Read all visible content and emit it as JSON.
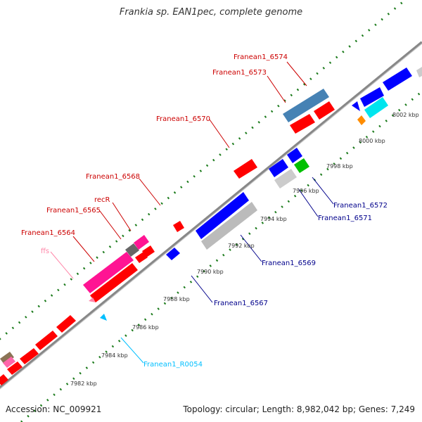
{
  "title": "Frankia sp. EAN1pec, complete genome",
  "footer": {
    "accession": "Accession: NC_009921",
    "topology": "Topology: circular; Length: 8,982,042 bp; Genes: 7,249"
  },
  "tick_labels": [
    "7982 kbp",
    "7984 kbp",
    "7986 kbp",
    "7988 kbp",
    "7990 kbp",
    "7992 kbp",
    "7994 kbp",
    "7996 kbp",
    "7998 kbp",
    "8000 kbp",
    "8002 kbp"
  ],
  "gene_labels_top": [
    "Franean1_6574",
    "Franean1_6573",
    "Franean1_6570",
    "Franean1_6568",
    "recR",
    "Franean1_6565",
    "Franean1_6564",
    "ffs"
  ],
  "gene_labels_bottom": [
    "Franean1_6572",
    "Franean1_6571",
    "Franean1_6569",
    "Franean1_6567",
    "Franean1_R0054"
  ],
  "colors": {
    "forward_cds": "#ff0000",
    "reverse_cds": "#0000ff",
    "forward_label": "#cc0000",
    "reverse_label": "#00008b",
    "rna_label": "#00bfff",
    "ffs_label": "#ff88aa",
    "backbone": "#888888",
    "gc_dots": "#1a7a1a"
  }
}
